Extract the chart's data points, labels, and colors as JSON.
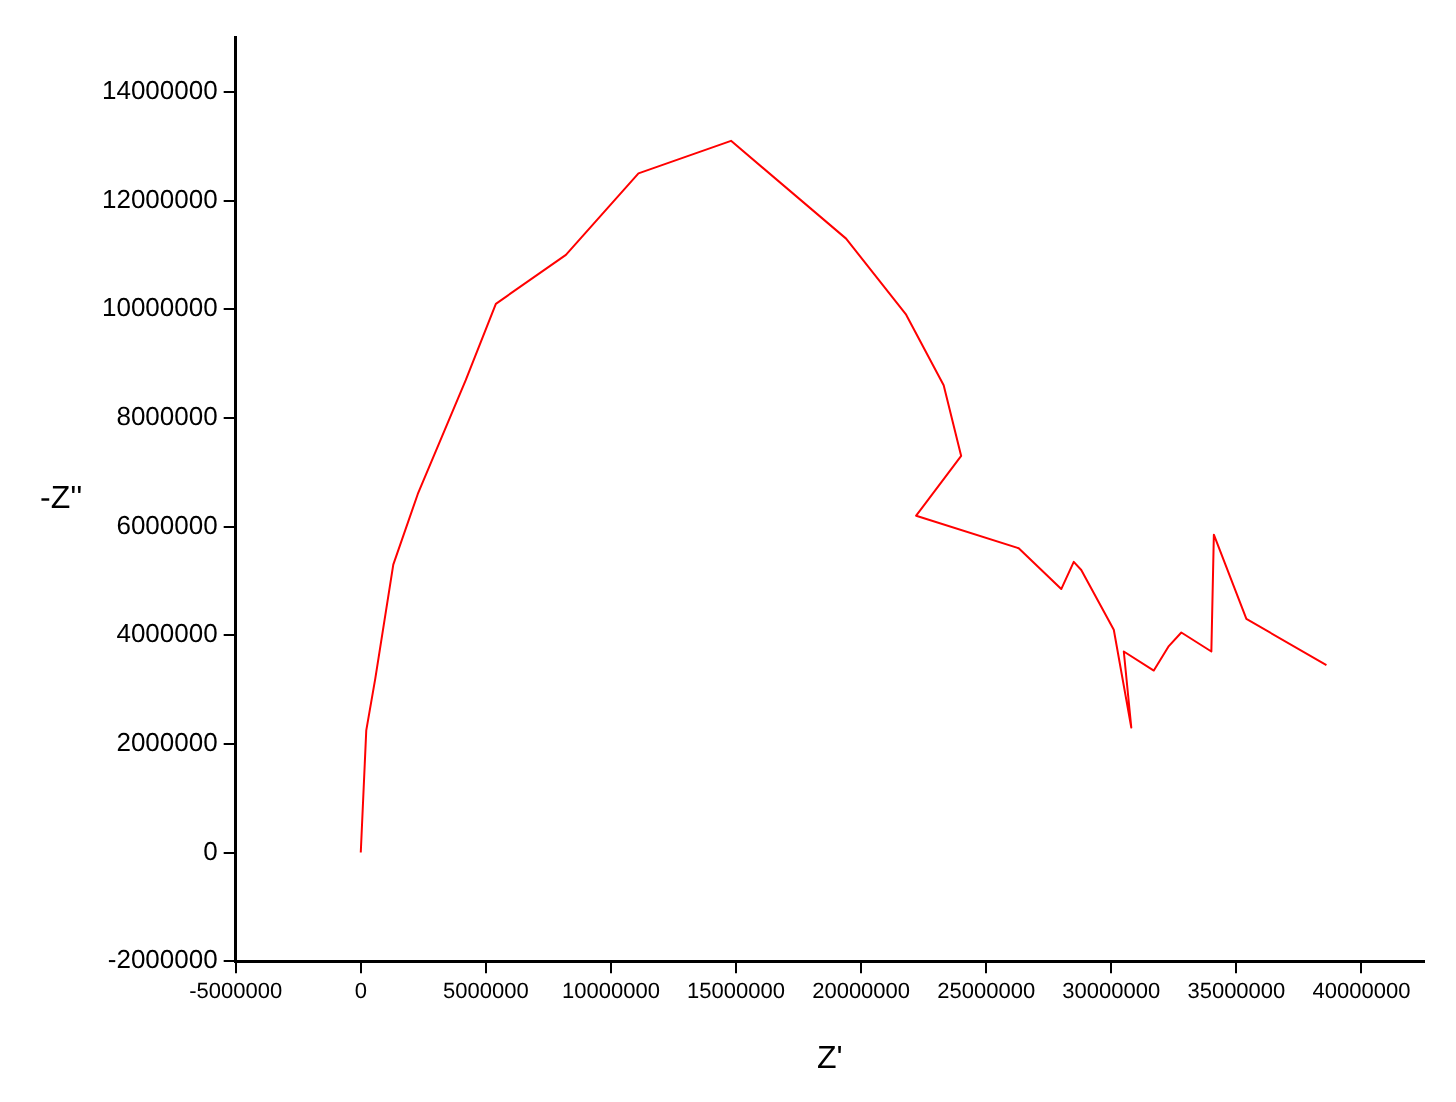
{
  "chart_data": {
    "type": "line",
    "xlabel": "Z'",
    "ylabel": "-Z''",
    "x": [
      0,
      220000,
      580000,
      1300000,
      2280000,
      4200000,
      5400000,
      8200000,
      11100000,
      14800000,
      19400000,
      21800000,
      23300000,
      24000000,
      22200000,
      26300000,
      28000000,
      28500000,
      28800000,
      30100000,
      30800000,
      30500000,
      31700000,
      32300000,
      32800000,
      34000000,
      34100000,
      35400000,
      38600000
    ],
    "series": [
      {
        "color": "#ff0000",
        "values": [
          0,
          2250000,
          3200000,
          5300000,
          6600000,
          8700000,
          10100000,
          11000000,
          12500000,
          13100000,
          11300000,
          9900000,
          8600000,
          7300000,
          6200000,
          5600000,
          4850000,
          5350000,
          5200000,
          4100000,
          2300000,
          3700000,
          3350000,
          3800000,
          4050000,
          3700000,
          5850000,
          4300000,
          3450000
        ]
      }
    ],
    "xlim": [
      -5000000,
      42500000
    ],
    "xticks": [
      -5000000,
      0,
      5000000,
      10000000,
      15000000,
      20000000,
      25000000,
      30000000,
      35000000,
      40000000
    ],
    "ylim": [
      -2000000,
      15000000
    ],
    "yticks": [
      -2000000,
      0,
      2000000,
      4000000,
      6000000,
      8000000,
      10000000,
      12000000,
      14000000
    ],
    "grid": false,
    "legend": false,
    "marker": "none",
    "line_style": "solid"
  }
}
